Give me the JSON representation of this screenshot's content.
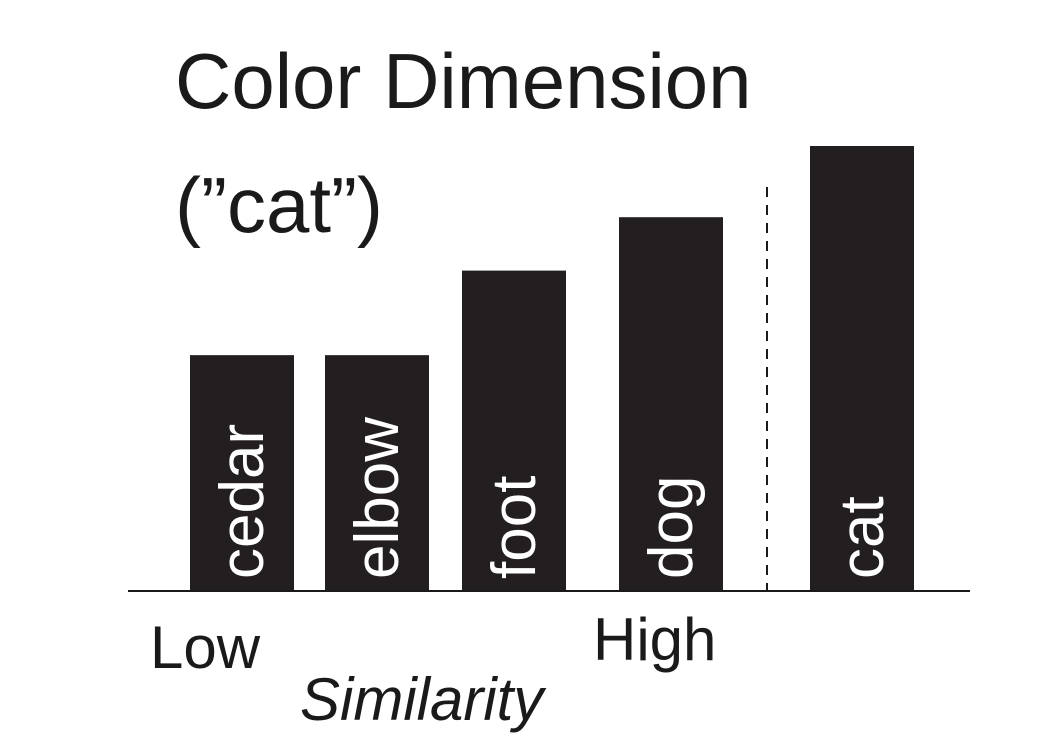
{
  "chart_data": {
    "type": "bar",
    "title": "Color Dimension",
    "subtitle": "(”cat”)",
    "categories": [
      "cedar",
      "elbow",
      "foot",
      "dog",
      "cat"
    ],
    "values": [
      0.53,
      0.53,
      0.72,
      0.84,
      1.0
    ],
    "xlabel": "Similarity",
    "x_low_label": "Low",
    "x_high_label": "High",
    "ylim": [
      0,
      1
    ],
    "grid": false,
    "legend": "none",
    "separator_after_index": 3,
    "bar_color": "#231f20",
    "label_color": "#ffffff"
  }
}
